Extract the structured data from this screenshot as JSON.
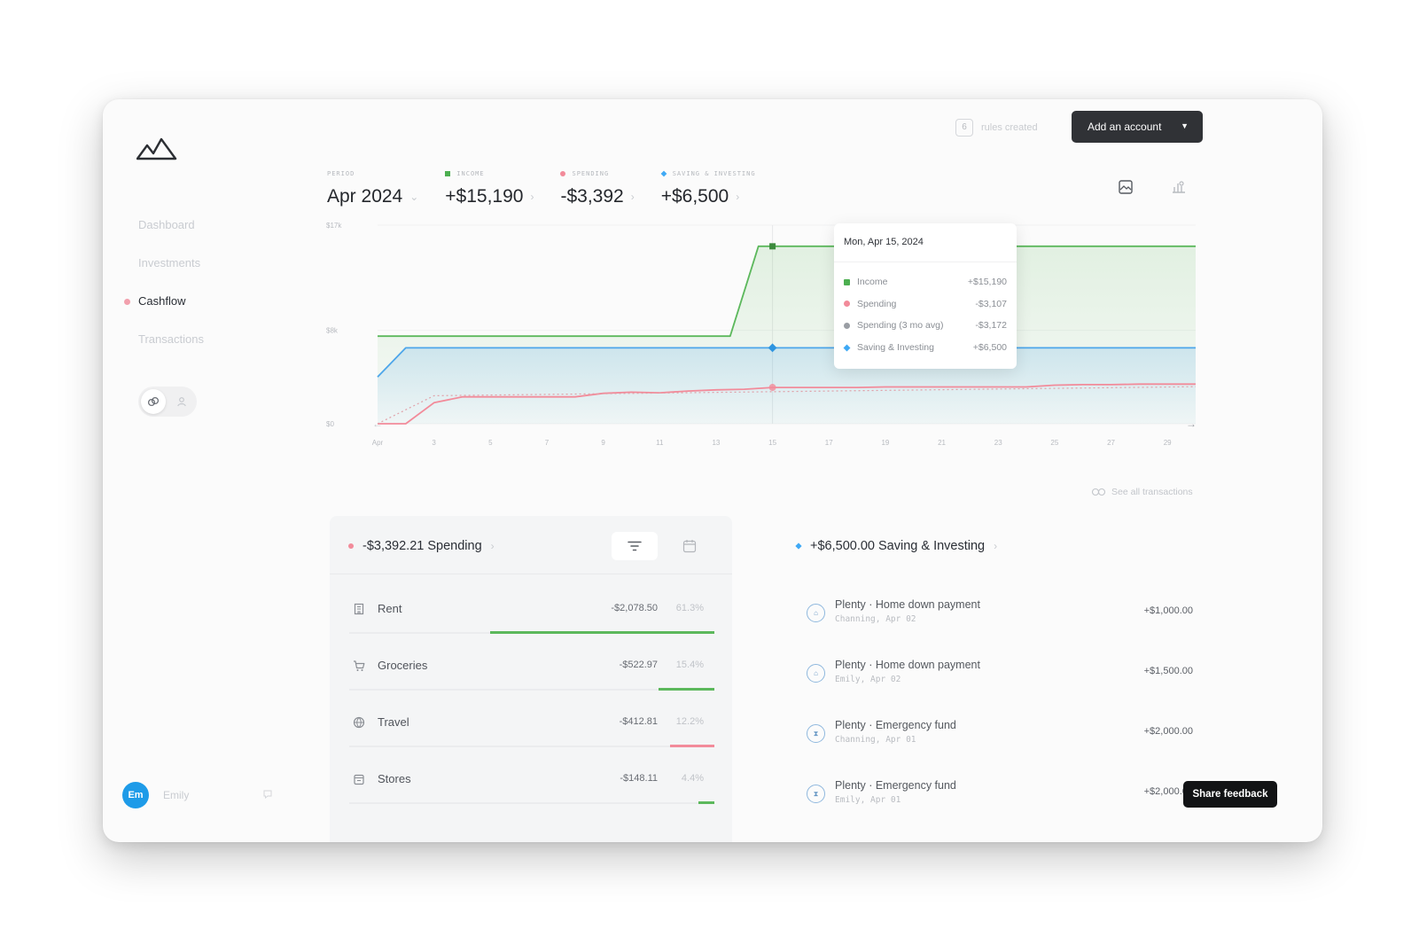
{
  "sidebar": {
    "items": [
      {
        "label": "Dashboard"
      },
      {
        "label": "Investments"
      },
      {
        "label": "Cashflow"
      },
      {
        "label": "Transactions"
      }
    ],
    "active_index": 2
  },
  "user": {
    "initials": "Em",
    "name": "Emily"
  },
  "header": {
    "rules_count": "6",
    "rules_label": "rules created",
    "add_account_label": "Add an account"
  },
  "stats": {
    "period": {
      "label": "PERIOD",
      "value": "Apr 2024"
    },
    "income": {
      "label": "INCOME",
      "value": "+$15,190",
      "color": "#4caf50"
    },
    "spending": {
      "label": "SPENDING",
      "value": "-$3,392",
      "color": "#f28b9a"
    },
    "saving": {
      "label": "SAVING & INVESTING",
      "value": "+$6,500",
      "color": "#3fa9f5"
    }
  },
  "chart_data": {
    "type": "line",
    "y_ticks": [
      "$17k",
      "$8k",
      "$0"
    ],
    "ylim": [
      0,
      17000
    ],
    "x_tick_labels": [
      "Apr",
      "3",
      "5",
      "7",
      "9",
      "11",
      "13",
      "15",
      "17",
      "19",
      "21",
      "23",
      "25",
      "27",
      "29"
    ],
    "x_ticks": [
      1,
      3,
      5,
      7,
      9,
      11,
      13,
      15,
      17,
      19,
      21,
      23,
      25,
      27,
      29
    ],
    "xlim": [
      1,
      30
    ],
    "series": [
      {
        "name": "Income",
        "color": "#5cb85c",
        "area": true,
        "x": [
          1,
          1.5,
          13.5,
          14.5,
          15,
          30
        ],
        "y": [
          7500,
          7500,
          7500,
          15190,
          15190,
          15190
        ]
      },
      {
        "name": "Saving & Investing",
        "color": "#4da6ea",
        "area": true,
        "x": [
          1,
          2,
          15,
          30
        ],
        "y": [
          4000,
          6500,
          6500,
          6500
        ]
      },
      {
        "name": "Spending",
        "color": "#f28b9a",
        "area": false,
        "x": [
          1,
          2,
          3,
          4,
          5,
          6,
          7,
          8,
          9,
          10,
          11,
          12,
          13,
          14,
          15,
          16,
          17,
          18,
          19,
          20,
          21,
          22,
          23,
          24,
          25,
          26,
          27,
          28,
          29,
          30
        ],
        "y": [
          0,
          0,
          1800,
          2300,
          2300,
          2300,
          2300,
          2300,
          2600,
          2700,
          2650,
          2800,
          2900,
          2950,
          3107,
          3107,
          3107,
          3107,
          3150,
          3150,
          3150,
          3150,
          3150,
          3150,
          3300,
          3350,
          3350,
          3392,
          3392,
          3392
        ]
      },
      {
        "name": "Spending (3 mo avg)",
        "color": "#e0a0a8",
        "area": false,
        "dashed": true,
        "x": [
          1,
          3,
          30
        ],
        "y": [
          0,
          2400,
          3172
        ]
      }
    ],
    "highlight_x": 15,
    "tooltip": {
      "date": "Mon, Apr 15, 2024",
      "rows": [
        {
          "name": "Income",
          "value": "+$15,190",
          "color": "#4caf50"
        },
        {
          "name": "Spending",
          "value": "-$3,107",
          "color": "#f28b9a"
        },
        {
          "name": "Spending (3 mo avg)",
          "value": "-$3,172",
          "color": "#9a9ea4"
        },
        {
          "name": "Saving & Investing",
          "value": "+$6,500",
          "color": "#3fa9f5"
        }
      ]
    }
  },
  "see_all_label": "See all transactions",
  "spending_panel": {
    "title": "-$3,392.21 Spending",
    "items": [
      {
        "name": "Rent",
        "amount": "-$2,078.50",
        "percent": "61.3%",
        "share": 0.613,
        "color": "#5cb85c",
        "icon": "building-icon"
      },
      {
        "name": "Groceries",
        "amount": "-$522.97",
        "percent": "15.4%",
        "share": 0.154,
        "color": "#5cb85c",
        "icon": "cart-icon"
      },
      {
        "name": "Travel",
        "amount": "-$412.81",
        "percent": "12.2%",
        "share": 0.122,
        "color": "#f28b9a",
        "icon": "globe-icon"
      },
      {
        "name": "Stores",
        "amount": "-$148.11",
        "percent": "4.4%",
        "share": 0.044,
        "color": "#5cb85c",
        "icon": "store-icon"
      }
    ]
  },
  "saving_panel": {
    "title": "+$6,500.00 Saving & Investing",
    "items": [
      {
        "name": "Plenty · Home down payment",
        "sub": "Channing, Apr 02",
        "amount": "+$1,000.00"
      },
      {
        "name": "Plenty · Home down payment",
        "sub": "Emily, Apr 02",
        "amount": "+$1,500.00"
      },
      {
        "name": "Plenty · Emergency fund",
        "sub": "Channing, Apr 01",
        "amount": "+$2,000.00"
      },
      {
        "name": "Plenty · Emergency fund",
        "sub": "Emily, Apr 01",
        "amount": "+$2,000.00"
      }
    ]
  },
  "feedback_label": "Share feedback"
}
